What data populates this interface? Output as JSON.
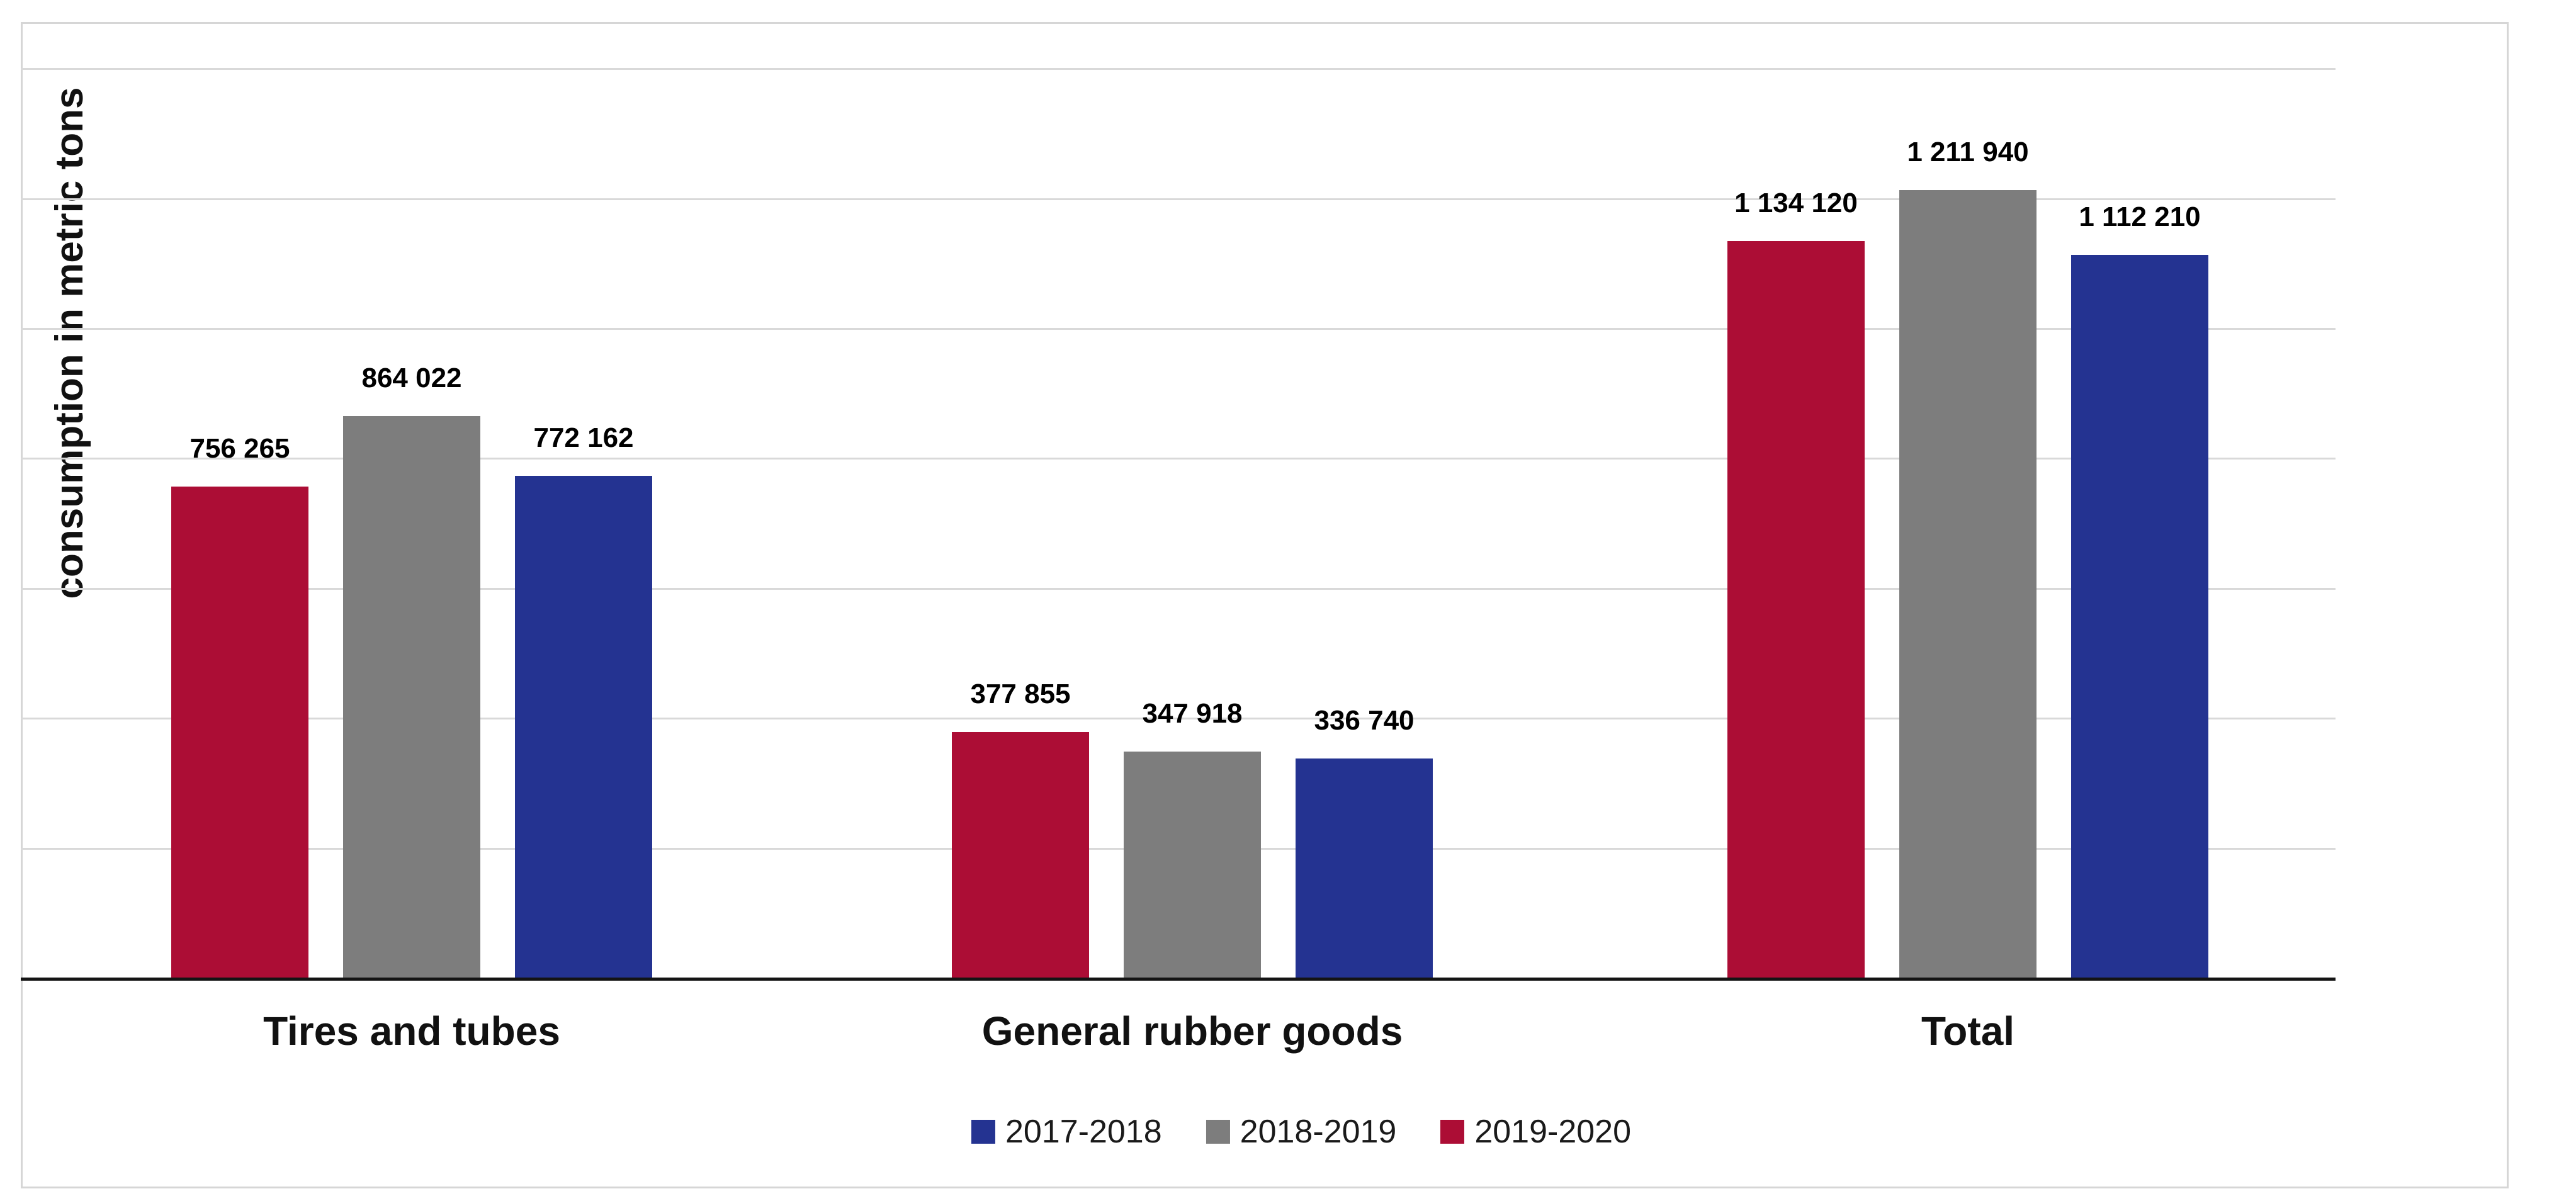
{
  "chart_data": {
    "type": "bar",
    "title": "",
    "xlabel": "",
    "ylabel": "consumption in metric tons",
    "categories": [
      "Tires and tubes",
      "General rubber goods",
      "Total"
    ],
    "series": [
      {
        "name": "2017-2018",
        "color": "#243391",
        "values": [
          772162,
          336740,
          1112210
        ],
        "labels": [
          "772 162",
          "336 740",
          "1 112 210"
        ]
      },
      {
        "name": "2018-2019",
        "color": "#7d7d7d",
        "values": [
          864022,
          347918,
          1211940
        ],
        "labels": [
          "864 022",
          "347 918",
          "1 211 940"
        ]
      },
      {
        "name": "2019-2020",
        "color": "#ac0d35",
        "values": [
          756265,
          377855,
          1134120
        ],
        "labels": [
          "756 265",
          "377 855",
          "1 134 120"
        ]
      }
    ],
    "bar_order_left_to_right": [
      "2019-2020",
      "2018-2019",
      "2017-2018"
    ],
    "legend_order": [
      "2017-2018",
      "2018-2019",
      "2019-2020"
    ],
    "legend_position": "bottom",
    "value_labels_shown": true,
    "grid": "horizontal",
    "gridline_interval": 200000,
    "ylim": [
      0,
      1400000
    ],
    "y_tick_labels_shown": false
  },
  "colors": {
    "gridline": "#d9d9d9",
    "frame_border": "#d6d6d6",
    "axis_line": "#141414",
    "text": "#000000"
  }
}
